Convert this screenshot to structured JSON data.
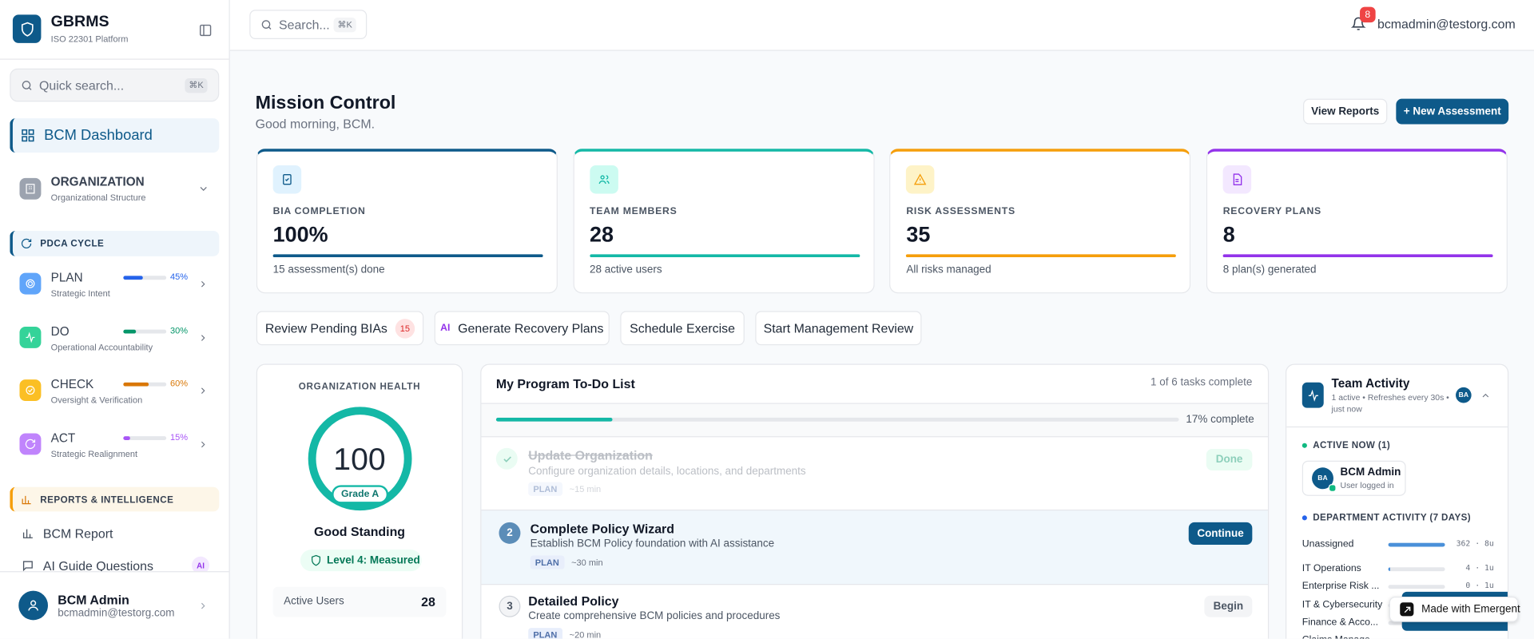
{
  "sidebar": {
    "brand": {
      "name": "GBRMS",
      "subtitle": "ISO 22301 Platform"
    },
    "quick_search": {
      "placeholder": "Quick search...",
      "shortcut": "⌘K"
    },
    "dashboard": "BCM Dashboard",
    "organization": {
      "title": "ORGANIZATION",
      "subtitle": "Organizational Structure"
    },
    "pdca": {
      "title": "PDCA CYCLE",
      "items": [
        {
          "name": "PLAN",
          "subtitle": "Strategic Intent",
          "progress": 45,
          "progress_label": "45%",
          "color": "#2563eb"
        },
        {
          "name": "DO",
          "subtitle": "Operational Accountability",
          "progress": 30,
          "progress_label": "30%",
          "color": "#059669"
        },
        {
          "name": "CHECK",
          "subtitle": "Oversight & Verification",
          "progress": 60,
          "progress_label": "60%",
          "color": "#d97706"
        },
        {
          "name": "ACT",
          "subtitle": "Strategic Realignment",
          "progress": 15,
          "progress_label": "15%",
          "color": "#a855f7"
        }
      ]
    },
    "reports": {
      "title": "REPORTS & INTELLIGENCE",
      "items": [
        {
          "label": "BCM Report"
        },
        {
          "label": "AI Guide Questions",
          "badge": "AI"
        }
      ]
    },
    "user": {
      "name": "BCM Admin",
      "email": "bcmadmin@testorg.com"
    }
  },
  "header": {
    "search": {
      "placeholder": "Search...",
      "shortcut": "⌘K"
    },
    "notifications": 8,
    "email": "bcmadmin@testorg.com"
  },
  "page": {
    "title": "Mission Control",
    "greeting": "Good morning, BCM.",
    "buttons": [
      "View Reports",
      "+ New Assessment"
    ]
  },
  "stats": [
    {
      "label": "BIA COMPLETION",
      "value": 100,
      "value_label": "100%",
      "note": "15 assessment(s) done",
      "color": "#0e5a8a"
    },
    {
      "label": "TEAM MEMBERS",
      "value": 28,
      "note": "28 active users",
      "color": "#14b8a6"
    },
    {
      "label": "RISK ASSESSMENTS",
      "value": 35,
      "note": "All risks managed",
      "color": "#f59e0b"
    },
    {
      "label": "RECOVERY PLANS",
      "value": 8,
      "note": "8 plan(s) generated",
      "color": "#9333ea"
    }
  ],
  "actions": [
    {
      "label": "Review Pending BIAs",
      "badge": 15
    },
    {
      "label": "Generate Recovery Plans",
      "icon": "AI"
    },
    {
      "label": "Schedule Exercise"
    },
    {
      "label": "Start Management Review"
    }
  ],
  "health": {
    "title": "ORGANIZATION HEALTH",
    "score": 100,
    "grade": "Grade A",
    "status": "Good Standing",
    "level": "Level 4: Measured",
    "metrics": [
      {
        "label": "Active Users",
        "value": 28
      }
    ]
  },
  "todo": {
    "title": "My Program To-Do List",
    "summary": "1 of 6 tasks complete",
    "progress": 17,
    "progress_label": "17% complete",
    "tasks": [
      {
        "title": "Update Organization",
        "description": "Configure organization details, locations, and departments",
        "tag": "PLAN",
        "time": "~15 min",
        "action": "Done"
      },
      {
        "number": 2,
        "title": "Complete Policy Wizard",
        "description": "Establish BCM Policy foundation with AI assistance",
        "tag": "PLAN",
        "time": "~30 min",
        "action": "Continue"
      },
      {
        "number": 3,
        "title": "Detailed Policy",
        "description": "Create comprehensive BCM policies and procedures",
        "tag": "PLAN",
        "time": "~20 min",
        "action": "Begin"
      }
    ]
  },
  "team": {
    "title": "Team Activity",
    "subtitle": "1 active • Refreshes every 30s • just now",
    "avatar": "BA",
    "active_title": "ACTIVE NOW (1)",
    "active_user": {
      "initials": "BA",
      "name": "BCM Admin",
      "status": "User logged in"
    },
    "department_title": "DEPARTMENT ACTIVITY (7 DAYS)",
    "departments": [
      {
        "name": "Unassigned",
        "value": 362,
        "activity_label": "362 · 8u"
      },
      {
        "name": "IT Operations",
        "value": 4,
        "activity_label": "4 · 1u"
      },
      {
        "name": "Enterprise Risk ...",
        "value": 0,
        "activity_label": "0 · 1u"
      },
      {
        "name": "IT & Cybersecurity"
      },
      {
        "name": "Finance & Acco..."
      },
      {
        "name": "Claims Manage..."
      }
    ]
  },
  "badge": "Made with Emergent"
}
